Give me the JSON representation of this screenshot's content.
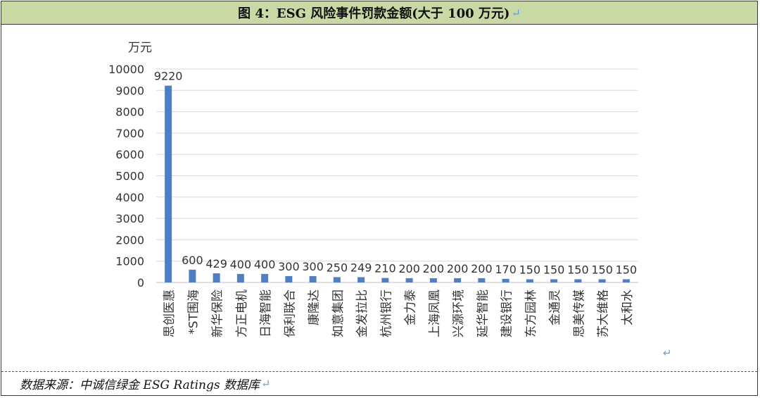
{
  "title": "图 4：ESG 风险事件罚款金额(大于 100 万元)",
  "return_mark": "↵",
  "source": "数据来源：中诚信绿金 ESG Ratings 数据库",
  "colors": {
    "bar": "#4f7ec2",
    "grid": "#d9d9d9",
    "header_bg": "#c9d9a5",
    "return_mark": "#6aa0d8"
  },
  "chart_data": {
    "type": "bar",
    "title": "",
    "xlabel": "",
    "ylabel": "万元",
    "ylim": [
      0,
      10000
    ],
    "yticks": [
      0,
      1000,
      2000,
      3000,
      4000,
      5000,
      6000,
      7000,
      8000,
      9000,
      10000
    ],
    "grid": true,
    "data_labels": true,
    "categories": [
      "思创医惠",
      "*ST围海",
      "新华保险",
      "方正电机",
      "日海智能",
      "保利联合",
      "康隆达",
      "如意集团",
      "金发拉比",
      "杭州银行",
      "金力泰",
      "上海凤凰",
      "兴源环境",
      "延华智能",
      "建设银行",
      "东方园林",
      "金通灵",
      "思美传媒",
      "苏大维格",
      "太和水"
    ],
    "values": [
      9220,
      600,
      429,
      400,
      400,
      300,
      300,
      250,
      249,
      210,
      200,
      200,
      200,
      200,
      170,
      150,
      150,
      150,
      150,
      150
    ]
  }
}
